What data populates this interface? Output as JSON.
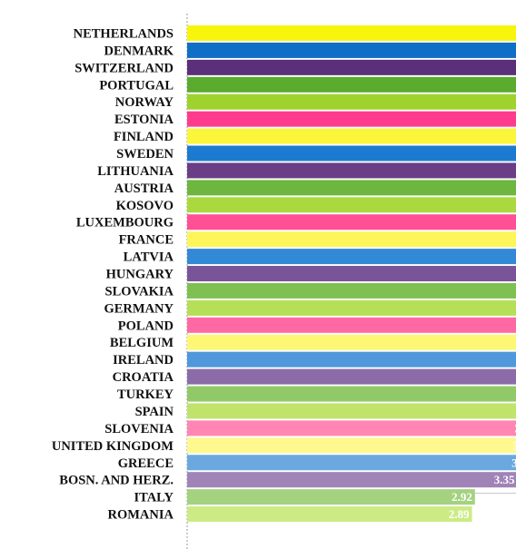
{
  "chart_data": {
    "type": "bar",
    "orientation": "horizontal",
    "title": "",
    "xlabel": "",
    "ylabel": "",
    "grid": false,
    "legend": "none",
    "xlim": [
      0,
      5
    ],
    "categories": [
      "NETHERLANDS",
      "DENMARK",
      "SWITZERLAND",
      "PORTUGAL",
      "NORWAY",
      "ESTONIA",
      "FINLAND",
      "SWEDEN",
      "LITHUANIA",
      "AUSTRIA",
      "KOSOVO",
      "LUXEMBOURG",
      "FRANCE",
      "LATVIA",
      "HUNGARY",
      "SLOVAKIA",
      "GERMANY",
      "POLAND",
      "BELGIUM",
      "IRELAND",
      "CROATIA",
      "TURKEY",
      "SPAIN",
      "SLOVENIA",
      "UNITED KINGDOM",
      "GREECE",
      "BOSN. AND HERZ.",
      "ITALY",
      "ROMANIA"
    ],
    "values": [
      4.82,
      4.49,
      4.45,
      4.43,
      4.43,
      4.39,
      4.25,
      4.25,
      4.19,
      4.12,
      4.06,
      4.04,
      4.04,
      4,
      3.94,
      3.94,
      3.82,
      3.79,
      3.79,
      3.71,
      3.67,
      3.66,
      3.64,
      3.56,
      3.54,
      3.53,
      3.35,
      2.92,
      2.89
    ],
    "value_labels": [
      "4.82",
      "4.49",
      "4.45",
      "4.43",
      "4.43",
      "4.39",
      "4.25",
      "4.25",
      "4.19",
      "4.12",
      "4.06",
      "4.04",
      "4.04",
      "4",
      "3.94",
      "3.94",
      "3.82",
      "3.79",
      "3.79",
      "3.71",
      "3.67",
      "3.66",
      "3.64",
      "3.56",
      "3.54",
      "3.53",
      "3.35",
      "2.92",
      "2.89"
    ],
    "colors": [
      "#f8f50c",
      "#0f6fc6",
      "#5b2f79",
      "#5aab2e",
      "#9fd22d",
      "#ff3b8d",
      "#fbf63a",
      "#1c7bd1",
      "#6a3d87",
      "#6db63f",
      "#a9d93f",
      "#ff4f95",
      "#fcf65a",
      "#3489d6",
      "#7a5498",
      "#7fc052",
      "#b5df56",
      "#ff69a3",
      "#fdf775",
      "#4f98dc",
      "#8c6ca8",
      "#91c968",
      "#c0e36c",
      "#ff86b3",
      "#fef88f",
      "#6ba8e0",
      "#a084b8",
      "#a4d27f",
      "#cceb85"
    ]
  }
}
